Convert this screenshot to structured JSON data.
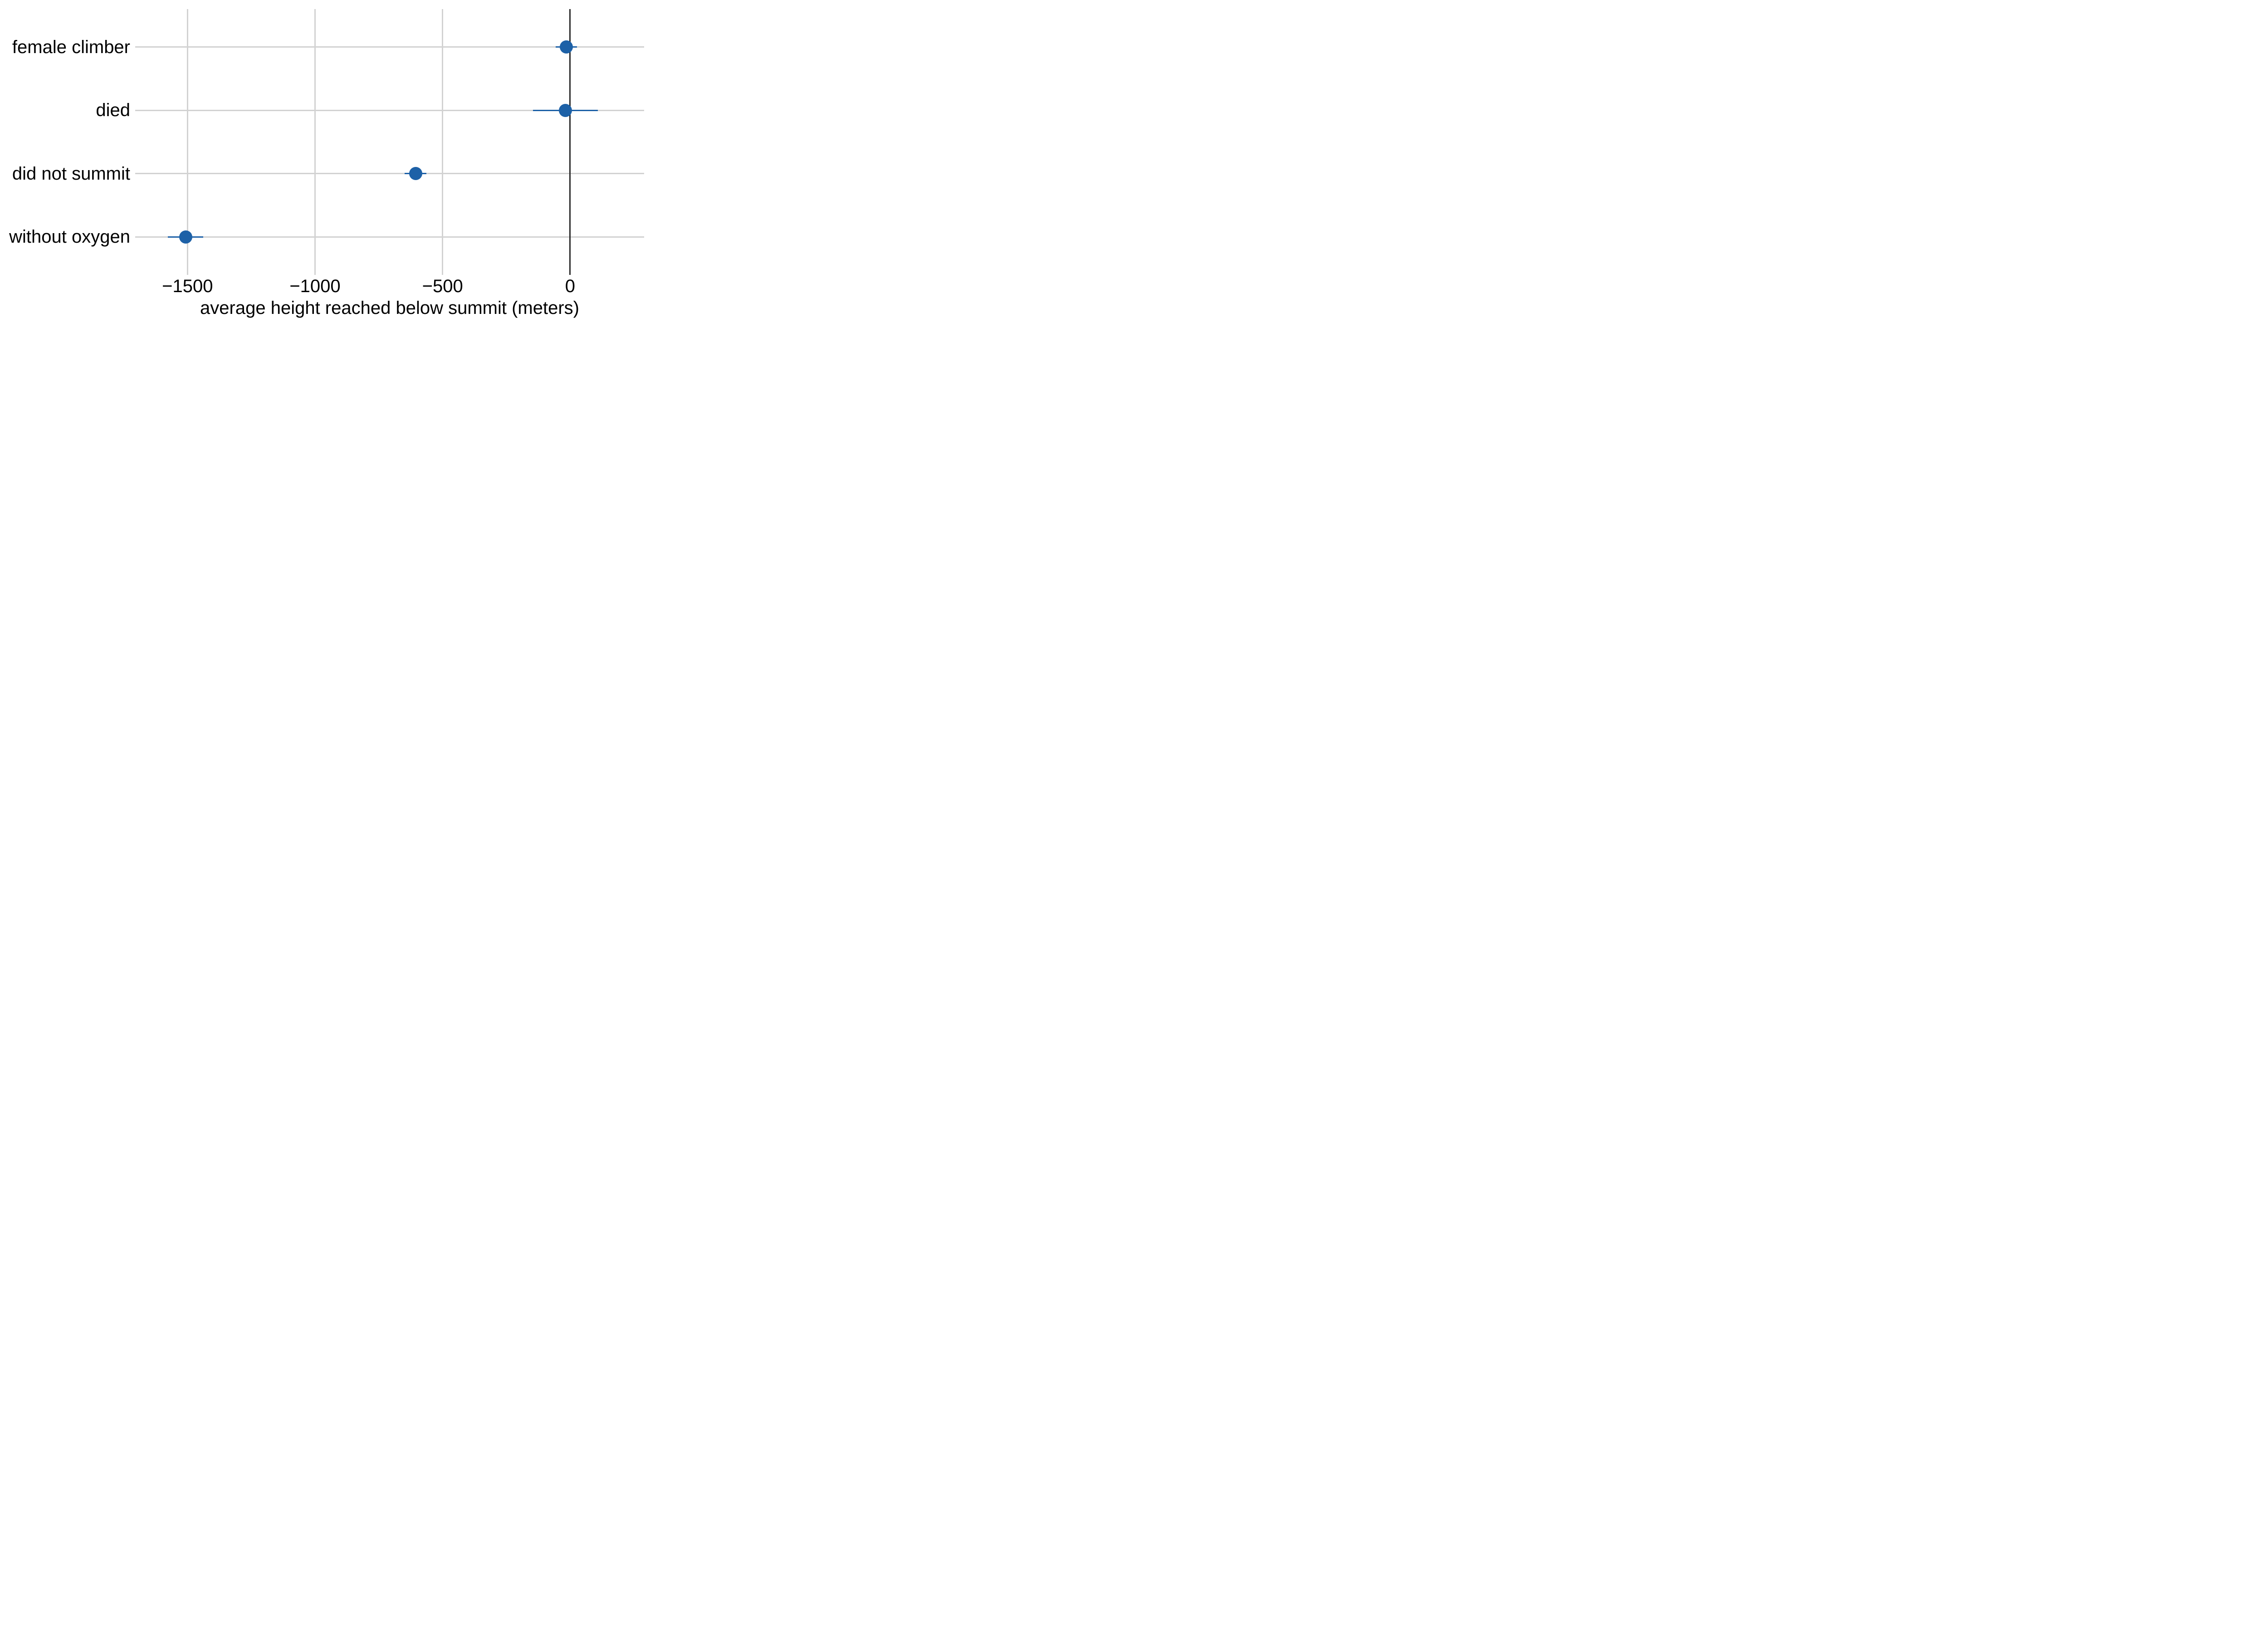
{
  "chart_data": {
    "type": "scatter",
    "style": "coefficient-dot-whisker",
    "title": "",
    "xlabel": "average height reached below summit (meters)",
    "ylabel": "",
    "xlim": [
      -1705,
      290
    ],
    "x_ticks": [
      {
        "value": -1500,
        "label": "−1500"
      },
      {
        "value": -1000,
        "label": "−1000"
      },
      {
        "value": -500,
        "label": "−500"
      },
      {
        "value": 0,
        "label": "0"
      }
    ],
    "reference_line_x": 0,
    "grid": true,
    "legend": false,
    "categories": [
      "female climber",
      "died",
      "did not summit",
      "without oxygen"
    ],
    "points": [
      {
        "label": "female climber",
        "estimate": -15,
        "ci_low": -57,
        "ci_high": 27
      },
      {
        "label": "died",
        "estimate": -18,
        "ci_low": -145,
        "ci_high": 108
      },
      {
        "label": "did not summit",
        "estimate": -606,
        "ci_low": -648,
        "ci_high": -564
      },
      {
        "label": "without oxygen",
        "estimate": -1507,
        "ci_low": -1577,
        "ci_high": -1439
      }
    ],
    "colors": {
      "point": "#1d61a7",
      "ci_bar": "#1d61a7",
      "grid": "#d2d2d2",
      "zero_line": "#2a2a2a",
      "text": "#000000",
      "background": "#ffffff"
    }
  }
}
